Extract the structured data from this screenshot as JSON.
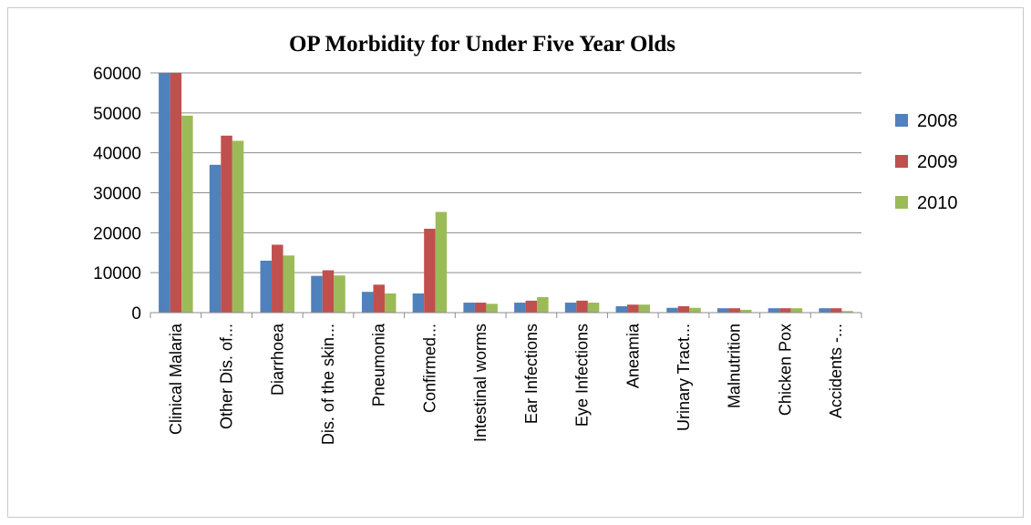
{
  "chart_data": {
    "type": "bar",
    "title": "OP Morbidity  for Under Five Year Olds",
    "xlabel": "",
    "ylabel": "",
    "ylim": [
      0,
      60000
    ],
    "yticks": [
      0,
      10000,
      20000,
      30000,
      40000,
      50000,
      60000
    ],
    "yticks_labels": [
      "0",
      "10000",
      "20000",
      "30000",
      "40000",
      "50000",
      "60000"
    ],
    "grid": true,
    "legend_position": "right",
    "categories": [
      "Clinical Malaria",
      "Other Dis. of...",
      "Diarrhoea",
      "Dis. of the skin...",
      "Pneumonia",
      "Confirmed...",
      "Intestinal worms",
      "Ear Infections",
      "Eye Infections",
      "Aneamia",
      "Urinary Tract...",
      "Malnutrition",
      "Chicken Pox",
      "Accidents -..."
    ],
    "series": [
      {
        "name": "2008",
        "color": "#4f81bd",
        "values": [
          63000,
          37000,
          13000,
          9200,
          5200,
          4800,
          2500,
          2500,
          2500,
          1600,
          1200,
          1100,
          1100,
          1100
        ]
      },
      {
        "name": "2009",
        "color": "#c0504d",
        "values": [
          60000,
          44300,
          17000,
          10600,
          7000,
          21000,
          2500,
          3000,
          3000,
          2000,
          1600,
          1100,
          1100,
          1100
        ]
      },
      {
        "name": "2010",
        "color": "#9bbb59",
        "values": [
          49300,
          43000,
          14300,
          9300,
          4800,
          25200,
          2200,
          3900,
          2500,
          2000,
          1200,
          700,
          1100,
          400
        ]
      }
    ]
  }
}
